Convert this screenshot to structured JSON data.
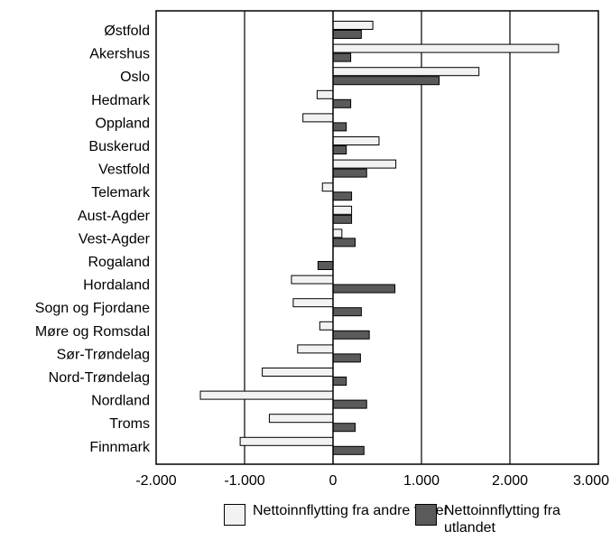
{
  "chart_data": {
    "type": "bar",
    "orientation": "horizontal",
    "categories": [
      "Østfold",
      "Akershus",
      "Oslo",
      "Hedmark",
      "Oppland",
      "Buskerud",
      "Vestfold",
      "Telemark",
      "Aust-Agder",
      "Vest-Agder",
      "Rogaland",
      "Hordaland",
      "Sogn og Fjordane",
      "Møre og Romsdal",
      "Sør-Trøndelag",
      "Nord-Trøndelag",
      "Nordland",
      "Troms",
      "Finnmark"
    ],
    "series": [
      {
        "name": "Nettoinnflytting fra andre fylker",
        "color": "#f2f2f2",
        "values": [
          450,
          2550,
          1650,
          -180,
          -340,
          520,
          710,
          -120,
          210,
          100,
          0,
          -470,
          -450,
          -150,
          -400,
          -800,
          -1500,
          -720,
          -1050
        ]
      },
      {
        "name": "Nettoinnflytting fra utlandet",
        "color": "#5a5a5a",
        "values": [
          320,
          200,
          1200,
          200,
          150,
          150,
          380,
          210,
          210,
          250,
          -170,
          700,
          320,
          410,
          310,
          150,
          380,
          250,
          350
        ]
      }
    ],
    "xlim": [
      -2000,
      3000
    ],
    "xticks": [
      "-2.000",
      "-1.000",
      "0",
      "1.000",
      "2.000",
      "3.000"
    ],
    "xtick_values": [
      -2000,
      -1000,
      0,
      1000,
      2000,
      3000
    ],
    "gridlines": [
      -1000,
      1000,
      2000
    ],
    "legend_position": "bottom"
  }
}
